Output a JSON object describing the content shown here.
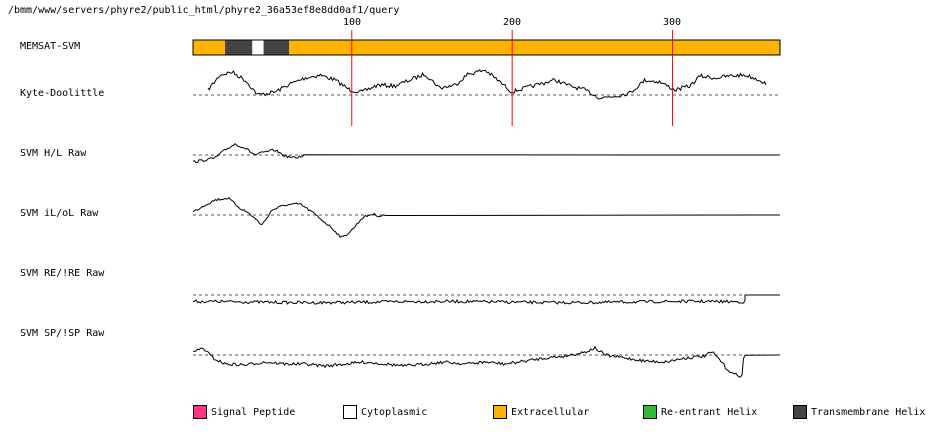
{
  "header": {
    "path": "/bmm/www/servers/phyre2/public_html/phyre2_36a53ef8e8dd0af1/query"
  },
  "axis": {
    "ticks": [
      "100",
      "200",
      "300"
    ],
    "tick_values": [
      100,
      200,
      300
    ],
    "max_residue": 367
  },
  "tracks": [
    {
      "label": "MEMSAT-SVM"
    },
    {
      "label": "Kyte-Doolittle"
    },
    {
      "label": "SVM H/L Raw"
    },
    {
      "label": "SVM iL/oL Raw"
    },
    {
      "label": "SVM RE/!RE Raw"
    },
    {
      "label": "SVM SP/!SP Raw"
    }
  ],
  "memsat_segments": [
    {
      "start": 1,
      "end": 21,
      "type": "Extracellular"
    },
    {
      "start": 21,
      "end": 38,
      "type": "Transmembrane Helix"
    },
    {
      "start": 38,
      "end": 45,
      "type": "Cytoplasmic"
    },
    {
      "start": 45,
      "end": 61,
      "type": "Transmembrane Helix"
    },
    {
      "start": 61,
      "end": 367,
      "type": "Extracellular"
    }
  ],
  "legend": [
    {
      "label": "Signal Peptide",
      "color": "#ff3385"
    },
    {
      "label": "Cytoplasmic",
      "color": "#ffffff"
    },
    {
      "label": "Extracellular",
      "color": "#ffb300"
    },
    {
      "label": "Re-entrant Helix",
      "color": "#33bb33"
    },
    {
      "label": "Transmembrane Helix",
      "color": "#444444"
    }
  ],
  "colors": {
    "marker": "#ff0000",
    "trace": "#000000",
    "threshold": "#555555"
  }
}
